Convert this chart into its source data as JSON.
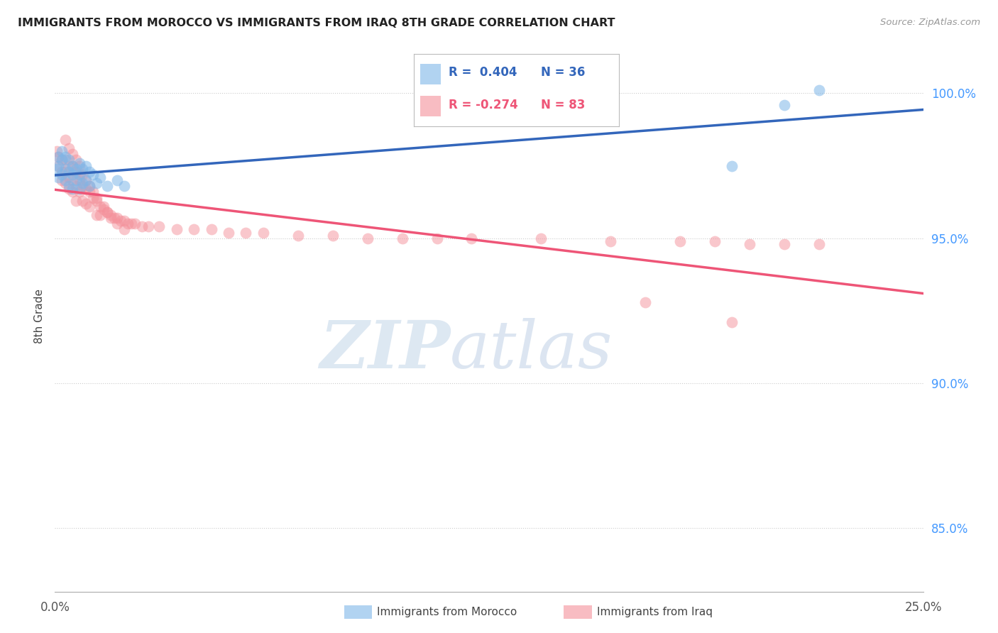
{
  "title": "IMMIGRANTS FROM MOROCCO VS IMMIGRANTS FROM IRAQ 8TH GRADE CORRELATION CHART",
  "source": "Source: ZipAtlas.com",
  "ylabel": "8th Grade",
  "ytick_vals": [
    0.85,
    0.9,
    0.95,
    1.0
  ],
  "ytick_labels": [
    "85.0%",
    "90.0%",
    "95.0%",
    "100.0%"
  ],
  "xlim": [
    0.0,
    0.25
  ],
  "ylim": [
    0.828,
    1.018
  ],
  "xtick_vals": [
    0.0,
    0.25
  ],
  "xtick_labels": [
    "0.0%",
    "25.0%"
  ],
  "legend_morocco_r": "R =  0.404",
  "legend_morocco_n": "N = 36",
  "legend_iraq_r": "R = -0.274",
  "legend_iraq_n": "N = 83",
  "color_morocco": "#7EB6E8",
  "color_iraq": "#F4909A",
  "color_trendline_morocco": "#3366BB",
  "color_trendline_iraq": "#EE5577",
  "morocco_x": [
    0.0005,
    0.001,
    0.001,
    0.001,
    0.002,
    0.002,
    0.002,
    0.003,
    0.003,
    0.003,
    0.004,
    0.004,
    0.004,
    0.005,
    0.005,
    0.005,
    0.006,
    0.006,
    0.007,
    0.007,
    0.007,
    0.008,
    0.008,
    0.009,
    0.009,
    0.01,
    0.01,
    0.011,
    0.012,
    0.013,
    0.015,
    0.018,
    0.02,
    0.195,
    0.21,
    0.22
  ],
  "morocco_y": [
    0.974,
    0.978,
    0.975,
    0.971,
    0.98,
    0.977,
    0.972,
    0.978,
    0.974,
    0.97,
    0.977,
    0.973,
    0.968,
    0.975,
    0.972,
    0.967,
    0.974,
    0.97,
    0.976,
    0.972,
    0.967,
    0.974,
    0.969,
    0.975,
    0.97,
    0.973,
    0.968,
    0.972,
    0.969,
    0.971,
    0.968,
    0.97,
    0.968,
    0.975,
    0.996,
    1.001
  ],
  "iraq_x": [
    0.0005,
    0.001,
    0.001,
    0.002,
    0.002,
    0.002,
    0.003,
    0.003,
    0.003,
    0.004,
    0.004,
    0.004,
    0.005,
    0.005,
    0.005,
    0.006,
    0.006,
    0.006,
    0.007,
    0.007,
    0.008,
    0.008,
    0.009,
    0.009,
    0.01,
    0.01,
    0.011,
    0.012,
    0.012,
    0.013,
    0.014,
    0.015,
    0.016,
    0.017,
    0.018,
    0.019,
    0.02,
    0.021,
    0.022,
    0.023,
    0.025,
    0.027,
    0.03,
    0.035,
    0.04,
    0.045,
    0.05,
    0.055,
    0.06,
    0.07,
    0.08,
    0.09,
    0.1,
    0.11,
    0.12,
    0.14,
    0.16,
    0.18,
    0.19,
    0.2,
    0.21,
    0.22,
    0.003,
    0.004,
    0.005,
    0.006,
    0.007,
    0.007,
    0.008,
    0.009,
    0.01,
    0.011,
    0.012,
    0.014,
    0.015,
    0.016,
    0.018,
    0.02,
    0.013,
    0.17,
    0.195
  ],
  "iraq_y": [
    0.98,
    0.978,
    0.975,
    0.977,
    0.973,
    0.97,
    0.977,
    0.973,
    0.969,
    0.975,
    0.971,
    0.967,
    0.975,
    0.97,
    0.966,
    0.973,
    0.968,
    0.963,
    0.97,
    0.966,
    0.968,
    0.963,
    0.967,
    0.962,
    0.966,
    0.961,
    0.964,
    0.963,
    0.958,
    0.961,
    0.96,
    0.959,
    0.958,
    0.957,
    0.957,
    0.956,
    0.956,
    0.955,
    0.955,
    0.955,
    0.954,
    0.954,
    0.954,
    0.953,
    0.953,
    0.953,
    0.952,
    0.952,
    0.952,
    0.951,
    0.951,
    0.95,
    0.95,
    0.95,
    0.95,
    0.95,
    0.949,
    0.949,
    0.949,
    0.948,
    0.948,
    0.948,
    0.984,
    0.981,
    0.979,
    0.977,
    0.975,
    0.972,
    0.972,
    0.97,
    0.968,
    0.966,
    0.964,
    0.961,
    0.959,
    0.957,
    0.955,
    0.953,
    0.958,
    0.928,
    0.921
  ]
}
